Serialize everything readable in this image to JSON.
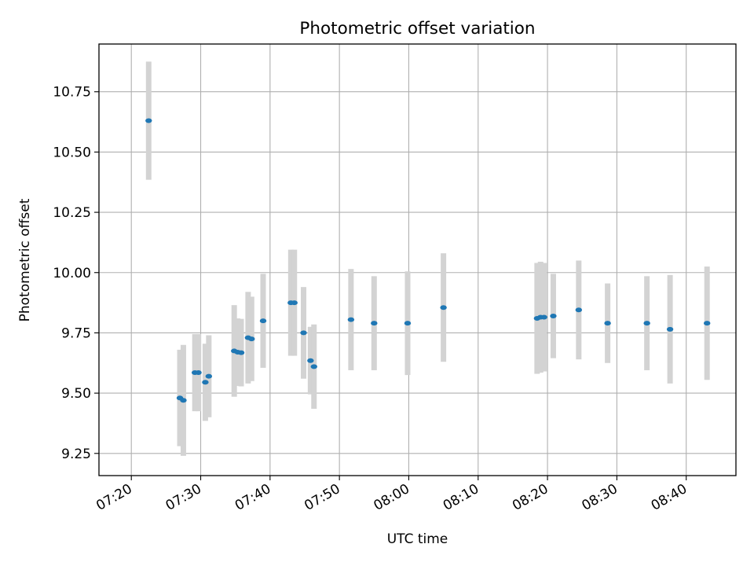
{
  "chart_data": {
    "type": "scatter",
    "title": "Photometric offset variation",
    "xlabel": "UTC time",
    "ylabel": "Photometric offset",
    "xlim": [
      "07:15:20",
      "08:47:10"
    ],
    "ylim": [
      9.158,
      10.948
    ],
    "x_ticks": [
      "07:20",
      "07:30",
      "07:40",
      "07:50",
      "08:00",
      "08:10",
      "08:20",
      "08:30",
      "08:40"
    ],
    "y_ticks": [
      "9.25",
      "9.50",
      "9.75",
      "10.00",
      "10.25",
      "10.50",
      "10.75"
    ],
    "grid": true,
    "marker_color": "#1f77b4",
    "errorbar_color": "#d3d3d3",
    "points": [
      {
        "x": "07:22:30",
        "y": 10.63,
        "err": 0.245
      },
      {
        "x": "07:27:00",
        "y": 9.48,
        "err": 0.2
      },
      {
        "x": "07:27:30",
        "y": 9.47,
        "err": 0.23
      },
      {
        "x": "07:29:10",
        "y": 9.585,
        "err": 0.16
      },
      {
        "x": "07:29:40",
        "y": 9.585,
        "err": 0.16
      },
      {
        "x": "07:30:40",
        "y": 9.545,
        "err": 0.16
      },
      {
        "x": "07:31:10",
        "y": 9.57,
        "err": 0.17
      },
      {
        "x": "07:34:50",
        "y": 9.675,
        "err": 0.19
      },
      {
        "x": "07:35:20",
        "y": 9.67,
        "err": 0.14
      },
      {
        "x": "07:35:50",
        "y": 9.668,
        "err": 0.14
      },
      {
        "x": "07:36:50",
        "y": 9.73,
        "err": 0.19
      },
      {
        "x": "07:37:20",
        "y": 9.725,
        "err": 0.175
      },
      {
        "x": "07:39:00",
        "y": 9.8,
        "err": 0.195
      },
      {
        "x": "07:43:00",
        "y": 9.875,
        "err": 0.22
      },
      {
        "x": "07:43:30",
        "y": 9.875,
        "err": 0.22
      },
      {
        "x": "07:44:50",
        "y": 9.75,
        "err": 0.19
      },
      {
        "x": "07:45:50",
        "y": 9.635,
        "err": 0.14
      },
      {
        "x": "07:46:20",
        "y": 9.61,
        "err": 0.175
      },
      {
        "x": "07:51:40",
        "y": 9.805,
        "err": 0.21
      },
      {
        "x": "07:55:00",
        "y": 9.79,
        "err": 0.195
      },
      {
        "x": "07:59:50",
        "y": 9.79,
        "err": 0.215
      },
      {
        "x": "08:05:00",
        "y": 9.855,
        "err": 0.225
      },
      {
        "x": "08:18:30",
        "y": 9.81,
        "err": 0.23
      },
      {
        "x": "08:19:00",
        "y": 9.815,
        "err": 0.23
      },
      {
        "x": "08:19:30",
        "y": 9.815,
        "err": 0.225
      },
      {
        "x": "08:20:50",
        "y": 9.82,
        "err": 0.175
      },
      {
        "x": "08:24:30",
        "y": 9.845,
        "err": 0.205
      },
      {
        "x": "08:28:40",
        "y": 9.79,
        "err": 0.165
      },
      {
        "x": "08:34:20",
        "y": 9.79,
        "err": 0.195
      },
      {
        "x": "08:37:40",
        "y": 9.765,
        "err": 0.225
      },
      {
        "x": "08:43:00",
        "y": 9.79,
        "err": 0.235
      }
    ]
  }
}
